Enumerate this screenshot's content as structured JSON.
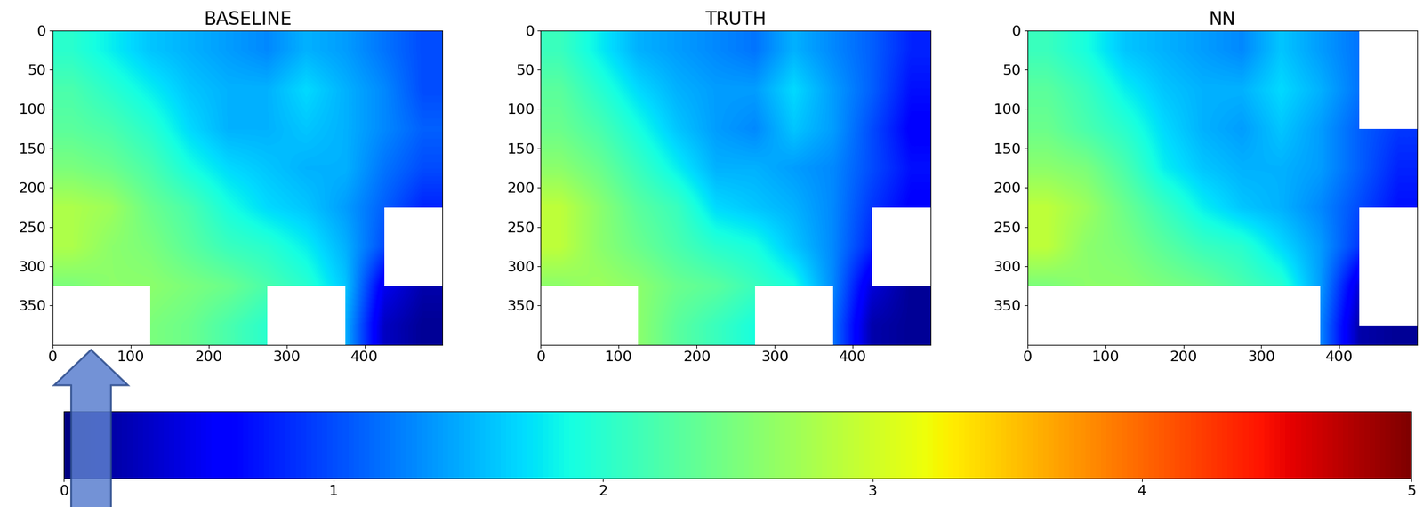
{
  "chart_data": {
    "type": "heatmap",
    "panels": [
      {
        "title": "BASELINE",
        "cells": [
          [
            2.0,
            1.8,
            1.6,
            1.5,
            1.4,
            1.3,
            1.5,
            1.4,
            1.2,
            1.0
          ],
          [
            2.2,
            2.0,
            1.8,
            1.6,
            1.5,
            1.5,
            1.7,
            1.5,
            1.3,
            1.0
          ],
          [
            2.3,
            2.2,
            2.0,
            1.7,
            1.5,
            1.5,
            1.6,
            1.5,
            1.3,
            1.1
          ],
          [
            2.5,
            2.4,
            2.2,
            1.9,
            1.7,
            1.6,
            1.5,
            1.5,
            1.2,
            1.0
          ],
          [
            2.8,
            2.7,
            2.4,
            2.2,
            1.9,
            1.7,
            1.6,
            1.4,
            1.1,
            0.8
          ],
          [
            2.8,
            2.6,
            2.5,
            2.3,
            2.1,
            2.0,
            1.8,
            1.5,
            1.0,
            null
          ],
          [
            2.5,
            2.6,
            2.6,
            2.5,
            2.4,
            2.2,
            2.0,
            1.6,
            0.5,
            0.2
          ],
          [
            null,
            null,
            2.5,
            2.4,
            2.2,
            2.0,
            null,
            1.5,
            0.3,
            0.1
          ]
        ]
      },
      {
        "title": "TRUTH",
        "cells": [
          [
            2.1,
            1.8,
            1.5,
            1.4,
            1.3,
            1.2,
            1.5,
            1.3,
            1.1,
            0.8
          ],
          [
            2.3,
            2.0,
            1.7,
            1.5,
            1.4,
            1.4,
            1.7,
            1.4,
            1.1,
            0.7
          ],
          [
            2.4,
            2.2,
            1.9,
            1.6,
            1.4,
            1.3,
            1.6,
            1.4,
            1.0,
            0.6
          ],
          [
            2.6,
            2.4,
            2.1,
            1.8,
            1.5,
            1.5,
            1.4,
            1.3,
            1.0,
            0.7
          ],
          [
            2.9,
            2.6,
            2.3,
            2.1,
            1.7,
            1.6,
            1.5,
            1.3,
            0.9,
            0.6
          ],
          [
            2.9,
            2.6,
            2.4,
            2.2,
            2.0,
            1.9,
            1.6,
            1.3,
            0.8,
            null
          ],
          [
            2.6,
            2.7,
            2.6,
            2.4,
            2.3,
            2.1,
            1.9,
            1.3,
            0.4,
            0.1
          ],
          [
            null,
            null,
            2.6,
            2.3,
            2.1,
            1.9,
            null,
            1.2,
            0.2,
            0.1
          ]
        ]
      },
      {
        "title": "NN",
        "cells": [
          [
            2.1,
            1.9,
            1.6,
            1.5,
            1.4,
            1.3,
            1.6,
            1.4,
            1.2,
            null
          ],
          [
            2.3,
            2.1,
            1.8,
            1.6,
            1.5,
            1.5,
            1.7,
            1.5,
            1.2,
            null
          ],
          [
            2.4,
            2.2,
            2.0,
            1.7,
            1.5,
            1.4,
            1.6,
            1.4,
            1.1,
            0.9
          ],
          [
            2.6,
            2.5,
            2.2,
            1.8,
            1.6,
            1.5,
            1.5,
            1.4,
            1.1,
            0.8
          ],
          [
            2.9,
            2.7,
            2.4,
            2.1,
            1.8,
            1.6,
            1.5,
            1.3,
            1.0,
            0.7
          ],
          [
            2.9,
            2.6,
            2.5,
            2.3,
            2.1,
            2.0,
            1.7,
            1.4,
            0.9,
            null
          ],
          [
            2.5,
            2.6,
            2.6,
            2.5,
            2.4,
            2.2,
            2.0,
            1.4,
            0.4,
            null
          ],
          [
            null,
            null,
            null,
            null,
            null,
            null,
            null,
            1.3,
            0.2,
            0.1
          ]
        ]
      }
    ],
    "xlim": [
      0,
      500
    ],
    "ylim": [
      400,
      0
    ],
    "xticks": [
      0,
      100,
      200,
      300,
      400
    ],
    "yticks": [
      0,
      50,
      100,
      150,
      200,
      250,
      300,
      350
    ],
    "colorbar": {
      "range": [
        0,
        5
      ],
      "ticks": [
        0,
        1,
        2,
        3,
        4,
        5
      ]
    }
  }
}
